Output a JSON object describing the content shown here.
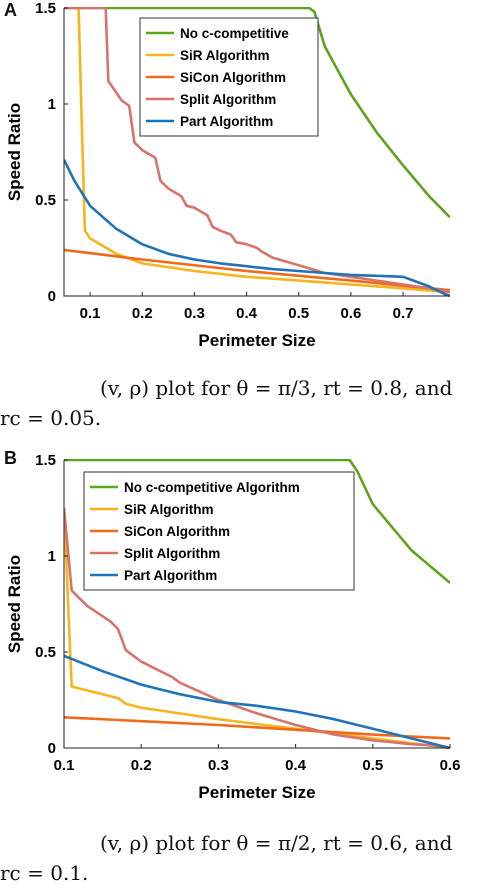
{
  "figure": {
    "panels": [
      {
        "letter": "A",
        "caption_line1": "(v, ρ) plot for θ = π/3, rt = 0.8, and",
        "caption_line2": "rc = 0.05."
      },
      {
        "letter": "B",
        "caption_line1": "(v, ρ) plot for θ = π/2, rt = 0.6, and",
        "caption_line2": "rc = 0.1."
      }
    ]
  },
  "colors": {
    "no_c": "#5aa51b",
    "sir": "#f6b51a",
    "sicon": "#ef6a1b",
    "split": "#d8736b",
    "part": "#1f74b8"
  },
  "chart_data": [
    {
      "type": "line",
      "panel": "A",
      "xlabel": "Perimeter Size",
      "ylabel": "Speed Ratio",
      "xlim": [
        0.05,
        0.79
      ],
      "ylim": [
        0,
        1.5
      ],
      "xticks": [
        0.1,
        0.2,
        0.3,
        0.4,
        0.5,
        0.6,
        0.7
      ],
      "yticks": [
        0,
        0.5,
        1,
        1.5
      ],
      "xtick_labels": [
        "0.1",
        "0.2",
        "0.3",
        "0.4",
        "0.5",
        "0.6",
        "0.7"
      ],
      "ytick_labels": [
        "0",
        "0.5",
        "1",
        "1.5"
      ],
      "legend_position": "top-right",
      "series": [
        {
          "name": "No c-competitive",
          "color_key": "no_c",
          "x": [
            0.05,
            0.52,
            0.53,
            0.55,
            0.6,
            0.65,
            0.7,
            0.75,
            0.79
          ],
          "y": [
            1.5,
            1.5,
            1.48,
            1.3,
            1.05,
            0.85,
            0.68,
            0.52,
            0.41
          ]
        },
        {
          "name": "SiR Algorithm",
          "color_key": "sir",
          "x": [
            0.078,
            0.085,
            0.09,
            0.1,
            0.15,
            0.2,
            0.3,
            0.4,
            0.5,
            0.6,
            0.7,
            0.79
          ],
          "y": [
            1.5,
            0.8,
            0.34,
            0.3,
            0.22,
            0.17,
            0.13,
            0.1,
            0.08,
            0.06,
            0.04,
            0.02
          ]
        },
        {
          "name": "SiCon Algorithm",
          "color_key": "sicon",
          "x": [
            0.05,
            0.2,
            0.4,
            0.6,
            0.79
          ],
          "y": [
            0.24,
            0.19,
            0.13,
            0.08,
            0.03
          ]
        },
        {
          "name": "Split Algorithm",
          "color_key": "split",
          "x": [
            0.05,
            0.13,
            0.135,
            0.15,
            0.16,
            0.175,
            0.185,
            0.2,
            0.225,
            0.235,
            0.25,
            0.275,
            0.285,
            0.3,
            0.325,
            0.335,
            0.35,
            0.37,
            0.38,
            0.4,
            0.42,
            0.43,
            0.45,
            0.5,
            0.55,
            0.6,
            0.65,
            0.7,
            0.75,
            0.79
          ],
          "y": [
            1.5,
            1.5,
            1.12,
            1.06,
            1.02,
            0.99,
            0.8,
            0.76,
            0.72,
            0.6,
            0.56,
            0.52,
            0.47,
            0.46,
            0.42,
            0.36,
            0.34,
            0.32,
            0.28,
            0.27,
            0.25,
            0.23,
            0.2,
            0.16,
            0.12,
            0.1,
            0.08,
            0.06,
            0.04,
            0.02
          ]
        },
        {
          "name": "Part Algorithm",
          "color_key": "part",
          "x": [
            0.05,
            0.07,
            0.1,
            0.15,
            0.2,
            0.25,
            0.3,
            0.35,
            0.4,
            0.45,
            0.5,
            0.55,
            0.6,
            0.65,
            0.7,
            0.72,
            0.75,
            0.78,
            0.79
          ],
          "y": [
            0.71,
            0.6,
            0.47,
            0.35,
            0.27,
            0.22,
            0.19,
            0.17,
            0.155,
            0.14,
            0.13,
            0.12,
            0.11,
            0.105,
            0.1,
            0.08,
            0.05,
            0.01,
            0.0
          ]
        }
      ]
    },
    {
      "type": "line",
      "panel": "B",
      "xlabel": "Perimeter Size",
      "ylabel": "Speed Ratio",
      "xlim": [
        0.1,
        0.6
      ],
      "ylim": [
        0,
        1.5
      ],
      "xticks": [
        0.1,
        0.2,
        0.3,
        0.4,
        0.5,
        0.6
      ],
      "yticks": [
        0,
        0.5,
        1,
        1.5
      ],
      "xtick_labels": [
        "0.1",
        "0.2",
        "0.3",
        "0.4",
        "0.5",
        "0.6"
      ],
      "ytick_labels": [
        "0",
        "0.5",
        "1",
        "1.5"
      ],
      "legend_position": "top-right",
      "series": [
        {
          "name": "No c-competitive Algorithm",
          "color_key": "no_c",
          "x": [
            0.1,
            0.47,
            0.48,
            0.5,
            0.55,
            0.6
          ],
          "y": [
            1.5,
            1.5,
            1.44,
            1.27,
            1.03,
            0.86
          ]
        },
        {
          "name": "SiR Algorithm",
          "color_key": "sir",
          "x": [
            0.1,
            0.11,
            0.15,
            0.17,
            0.18,
            0.2,
            0.25,
            0.3,
            0.4,
            0.5,
            0.6
          ],
          "y": [
            1.25,
            0.32,
            0.28,
            0.26,
            0.23,
            0.21,
            0.18,
            0.15,
            0.1,
            0.05,
            0.0
          ]
        },
        {
          "name": "SiCon Algorithm",
          "color_key": "sicon",
          "x": [
            0.1,
            0.3,
            0.5,
            0.6
          ],
          "y": [
            0.16,
            0.12,
            0.07,
            0.05
          ]
        },
        {
          "name": "Split Algorithm",
          "color_key": "split",
          "x": [
            0.1,
            0.11,
            0.13,
            0.16,
            0.17,
            0.18,
            0.2,
            0.22,
            0.24,
            0.25,
            0.3,
            0.35,
            0.4,
            0.45,
            0.5,
            0.55,
            0.59,
            0.6
          ],
          "y": [
            1.25,
            0.82,
            0.74,
            0.66,
            0.62,
            0.51,
            0.45,
            0.41,
            0.37,
            0.34,
            0.25,
            0.18,
            0.12,
            0.07,
            0.04,
            0.02,
            0.01,
            0.0
          ]
        },
        {
          "name": "Part Algorithm",
          "color_key": "part",
          "x": [
            0.1,
            0.15,
            0.2,
            0.25,
            0.3,
            0.35,
            0.4,
            0.45,
            0.5,
            0.55,
            0.59,
            0.6
          ],
          "y": [
            0.48,
            0.4,
            0.33,
            0.28,
            0.24,
            0.22,
            0.19,
            0.15,
            0.1,
            0.05,
            0.01,
            0.0
          ]
        }
      ]
    }
  ]
}
